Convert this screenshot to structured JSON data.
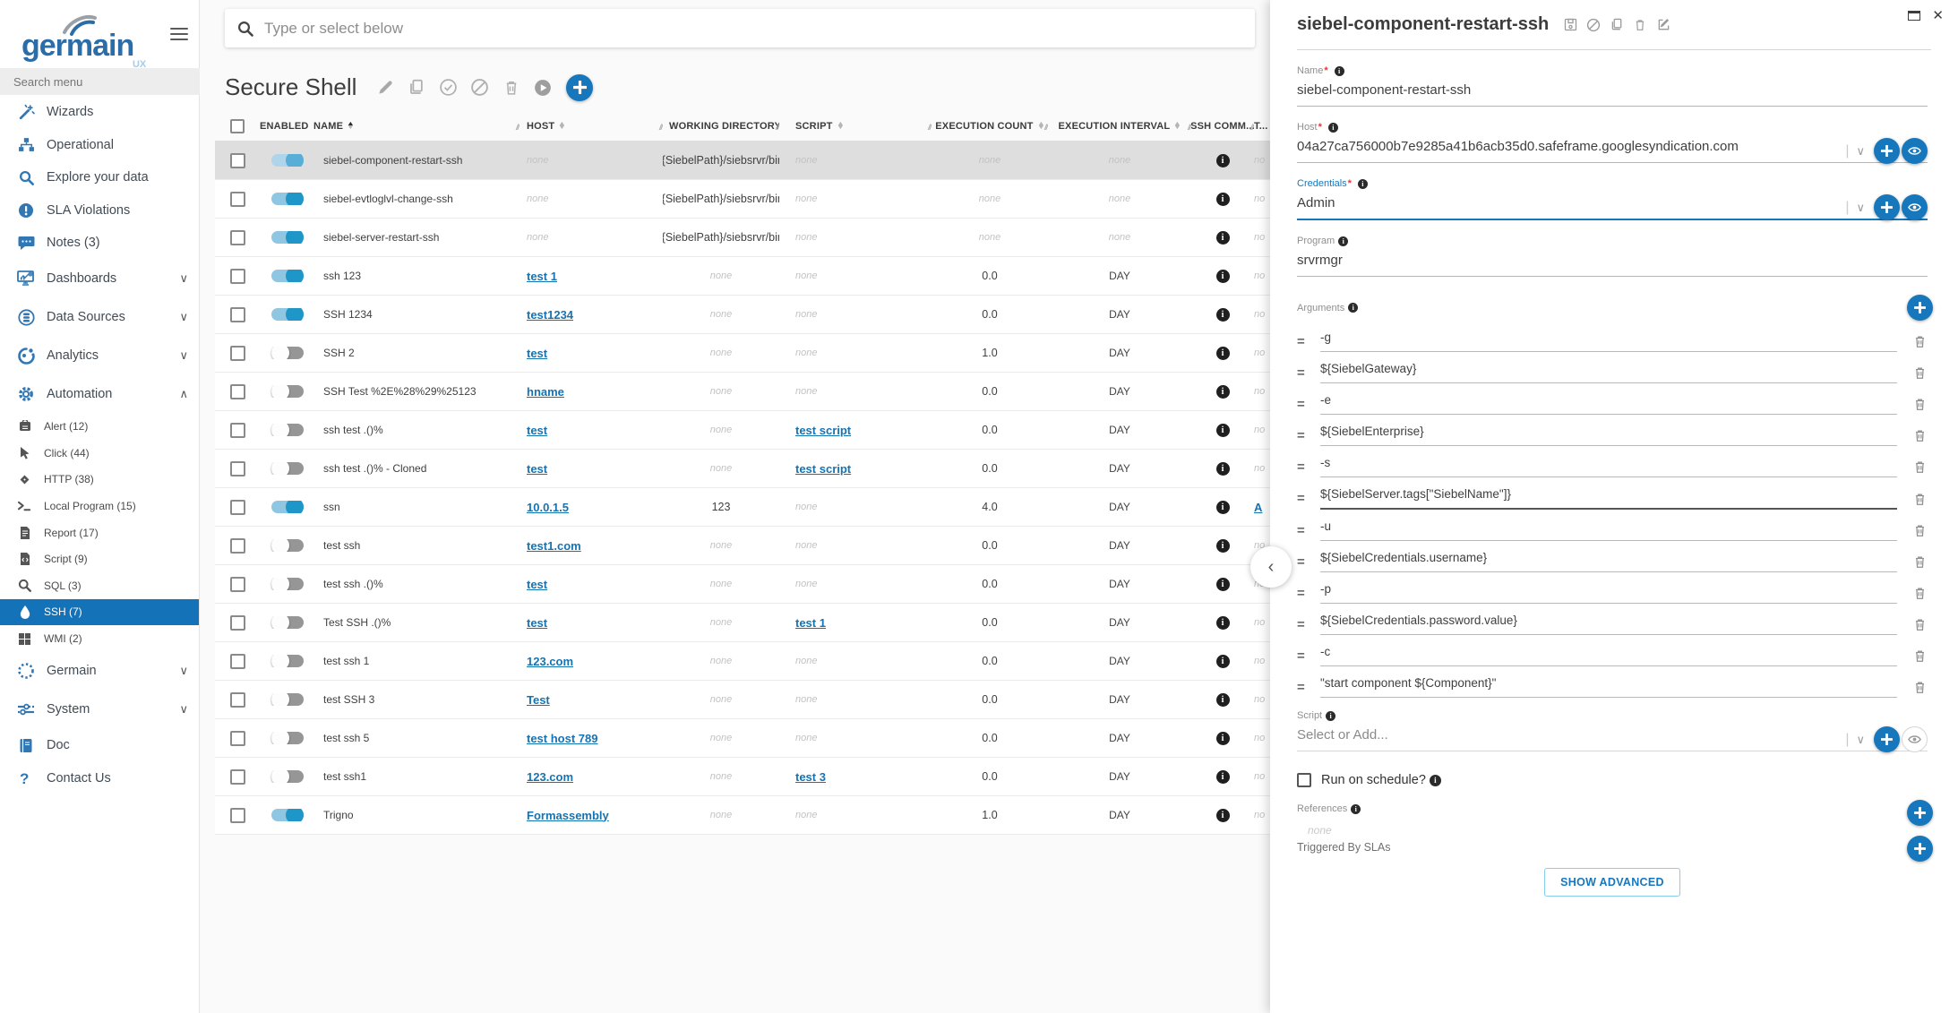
{
  "brand": {
    "name": "germain",
    "sub": "UX"
  },
  "sidebar": {
    "search_placeholder": "Search menu",
    "items": [
      {
        "icon": "wand",
        "label": "Wizards"
      },
      {
        "icon": "sitemap",
        "label": "Operational"
      },
      {
        "icon": "magnifier",
        "label": "Explore your data"
      },
      {
        "icon": "exclamation-circle",
        "label": "SLA Violations"
      },
      {
        "icon": "chat",
        "label": "Notes (3)"
      },
      {
        "icon": "dashboard",
        "label": "Dashboards",
        "chevron": "down"
      },
      {
        "icon": "database",
        "label": "Data Sources",
        "chevron": "down"
      },
      {
        "icon": "analytics",
        "label": "Analytics",
        "chevron": "down"
      },
      {
        "icon": "gear",
        "label": "Automation",
        "chevron": "up",
        "children": [
          {
            "icon": "bell",
            "label": "Alert (12)"
          },
          {
            "icon": "cursor",
            "label": "Click (44)"
          },
          {
            "icon": "diamond",
            "label": "HTTP (38)"
          },
          {
            "icon": "terminal",
            "label": "Local Program (15)"
          },
          {
            "icon": "report",
            "label": "Report (17)"
          },
          {
            "icon": "script",
            "label": "Script (9)"
          },
          {
            "icon": "magnifier",
            "label": "SQL (3)"
          },
          {
            "icon": "droplet",
            "label": "SSH (7)",
            "active": true
          },
          {
            "icon": "windows",
            "label": "WMI (2)"
          }
        ]
      },
      {
        "icon": "dashed-circle",
        "label": "Germain",
        "chevron": "down"
      },
      {
        "icon": "sliders",
        "label": "System",
        "chevron": "down"
      },
      {
        "icon": "book",
        "label": "Doc"
      },
      {
        "icon": "question",
        "label": "Contact Us"
      }
    ]
  },
  "search": {
    "placeholder": "Type or select below"
  },
  "list": {
    "title": "Secure Shell",
    "columns": [
      {
        "label": "ENABLED",
        "sort": "both"
      },
      {
        "label": "NAME",
        "sort": "asc"
      },
      {
        "label": "HOST",
        "sort": "both"
      },
      {
        "label": "WORKING DIRECTORY",
        "sort": "both"
      },
      {
        "label": "SCRIPT",
        "sort": "both"
      },
      {
        "label": "EXECUTION COUNT",
        "sort": "both"
      },
      {
        "label": "EXECUTION INTERVAL",
        "sort": "both"
      },
      {
        "label": "SSH COMM...",
        "sort": "none"
      },
      {
        "label": "T...",
        "sort": "none"
      }
    ],
    "rows": [
      {
        "enabled": true,
        "selected": true,
        "name": "siebel-component-restart-ssh",
        "host": "none",
        "host_link": false,
        "workdir": "${SiebelPath}/siebsrvr/bin/",
        "script": "none",
        "script_link": false,
        "count": "none",
        "interval": "none",
        "t": "no",
        "t_link": false
      },
      {
        "enabled": true,
        "name": "siebel-evtloglvl-change-ssh",
        "host": "none",
        "host_link": false,
        "workdir": "${SiebelPath}/siebsrvr/bin/",
        "script": "none",
        "script_link": false,
        "count": "none",
        "interval": "none",
        "t": "no",
        "t_link": false
      },
      {
        "enabled": true,
        "name": "siebel-server-restart-ssh",
        "host": "none",
        "host_link": false,
        "workdir": "${SiebelPath}/siebsrvr/bin/",
        "script": "none",
        "script_link": false,
        "count": "none",
        "interval": "none",
        "t": "no",
        "t_link": false
      },
      {
        "enabled": true,
        "name": "ssh 123",
        "host": "test 1",
        "host_link": true,
        "workdir": "none",
        "script": "none",
        "script_link": false,
        "count": "0.0",
        "interval": "DAY",
        "t": "no",
        "t_link": false
      },
      {
        "enabled": true,
        "name": "SSH 1234",
        "host": "test1234",
        "host_link": true,
        "workdir": "none",
        "script": "none",
        "script_link": false,
        "count": "0.0",
        "interval": "DAY",
        "t": "no",
        "t_link": false
      },
      {
        "enabled": false,
        "name": "SSH 2",
        "host": "test",
        "host_link": true,
        "workdir": "none",
        "script": "none",
        "script_link": false,
        "count": "1.0",
        "interval": "DAY",
        "t": "no",
        "t_link": false
      },
      {
        "enabled": false,
        "name": "SSH Test %2E%28%29%25123",
        "host": "hname",
        "host_link": true,
        "workdir": "none",
        "script": "none",
        "script_link": false,
        "count": "0.0",
        "interval": "DAY",
        "t": "no",
        "t_link": false
      },
      {
        "enabled": false,
        "name": "ssh test .()%",
        "host": "test",
        "host_link": true,
        "workdir": "none",
        "script": "test script",
        "script_link": true,
        "count": "0.0",
        "interval": "DAY",
        "t": "no",
        "t_link": false
      },
      {
        "enabled": false,
        "name": "ssh test .()% - Cloned",
        "host": "test",
        "host_link": true,
        "workdir": "none",
        "script": "test script",
        "script_link": true,
        "count": "0.0",
        "interval": "DAY",
        "t": "no",
        "t_link": false
      },
      {
        "enabled": true,
        "name": "ssn",
        "host": "10.0.1.5",
        "host_link": true,
        "workdir": "123",
        "script": "none",
        "script_link": false,
        "count": "4.0",
        "interval": "DAY",
        "t": "A",
        "t_link": true
      },
      {
        "enabled": false,
        "name": "test ssh",
        "host": "test1.com",
        "host_link": true,
        "workdir": "none",
        "script": "none",
        "script_link": false,
        "count": "0.0",
        "interval": "DAY",
        "t": "no",
        "t_link": false
      },
      {
        "enabled": false,
        "name": "test ssh .()%",
        "host": "test",
        "host_link": true,
        "workdir": "none",
        "script": "none",
        "script_link": false,
        "count": "0.0",
        "interval": "DAY",
        "t": "no",
        "t_link": false
      },
      {
        "enabled": false,
        "name": "Test SSH .()%",
        "host": "test",
        "host_link": true,
        "workdir": "none",
        "script": "test 1",
        "script_link": true,
        "count": "0.0",
        "interval": "DAY",
        "t": "no",
        "t_link": false
      },
      {
        "enabled": false,
        "name": "test ssh 1",
        "host": "123.com",
        "host_link": true,
        "workdir": "none",
        "script": "none",
        "script_link": false,
        "count": "0.0",
        "interval": "DAY",
        "t": "no",
        "t_link": false
      },
      {
        "enabled": false,
        "name": "test SSH 3",
        "host": "Test",
        "host_link": true,
        "workdir": "none",
        "script": "none",
        "script_link": false,
        "count": "0.0",
        "interval": "DAY",
        "t": "no",
        "t_link": false
      },
      {
        "enabled": false,
        "name": "test ssh 5",
        "host": "test host 789",
        "host_link": true,
        "workdir": "none",
        "script": "none",
        "script_link": false,
        "count": "0.0",
        "interval": "DAY",
        "t": "no",
        "t_link": false
      },
      {
        "enabled": false,
        "name": "test ssh1",
        "host": "123.com",
        "host_link": true,
        "workdir": "none",
        "script": "test 3",
        "script_link": true,
        "count": "0.0",
        "interval": "DAY",
        "t": "no",
        "t_link": false
      },
      {
        "enabled": true,
        "name": "Trigno",
        "host": "Formassembly",
        "host_link": true,
        "workdir": "none",
        "script": "none",
        "script_link": false,
        "count": "1.0",
        "interval": "DAY",
        "t": "no",
        "t_link": false
      }
    ]
  },
  "panel": {
    "title": "siebel-component-restart-ssh",
    "name": {
      "label": "Name",
      "required": true,
      "value": "siebel-component-restart-ssh"
    },
    "host": {
      "label": "Host",
      "required": true,
      "value": "04a27ca756000b7e9285a41b6acb35d0.safeframe.googlesyndication.com"
    },
    "credentials": {
      "label": "Credentials",
      "required": true,
      "value": "Admin"
    },
    "program": {
      "label": "Program",
      "required": false,
      "value": "srvrmgr"
    },
    "arguments": {
      "label": "Arguments",
      "items": [
        {
          "value": "-g"
        },
        {
          "value": "${SiebelGateway}"
        },
        {
          "value": "-e"
        },
        {
          "value": "${SiebelEnterprise}"
        },
        {
          "value": "-s"
        },
        {
          "value": "${SiebelServer.tags[\"SiebelName\"]}",
          "focus": true
        },
        {
          "value": "-u"
        },
        {
          "value": "${SiebelCredentials.username}"
        },
        {
          "value": "-p"
        },
        {
          "value": "${SiebelCredentials.password.value}"
        },
        {
          "value": "-c"
        },
        {
          "value": "\"start component ${Component}\""
        }
      ]
    },
    "script": {
      "label": "Script",
      "placeholder": "Select or Add..."
    },
    "run_on_schedule": "Run on schedule?",
    "references": {
      "label": "References",
      "value": "none"
    },
    "triggered_by": "Triggered By SLAs",
    "show_advanced": "SHOW ADVANCED"
  },
  "colors": {
    "accent": "#1777bd",
    "link": "#1673b1",
    "active_item": "#1472b8",
    "toggle_on": "#1e96c8",
    "selected_row": "#dedede"
  }
}
